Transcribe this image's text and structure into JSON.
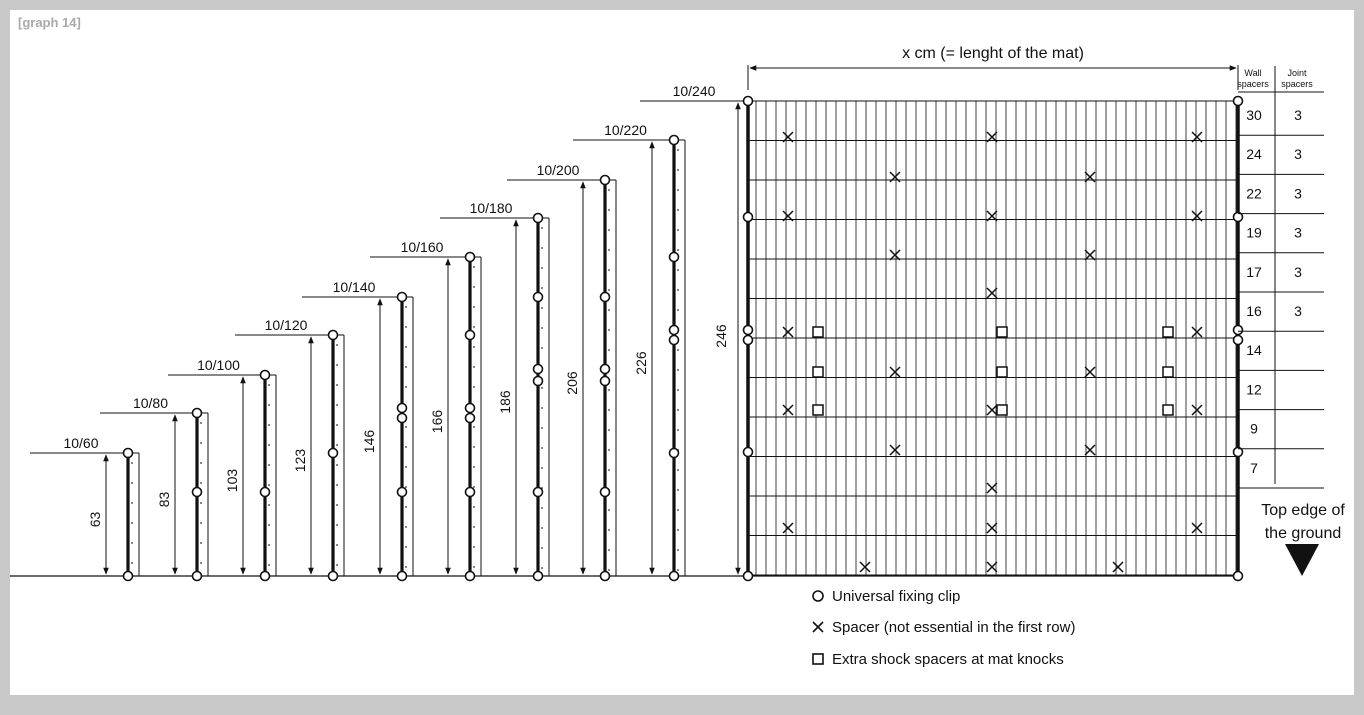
{
  "graph_tag": "[graph 14]",
  "panels": [
    {
      "label": "10/60",
      "height": "63"
    },
    {
      "label": "10/80",
      "height": "83"
    },
    {
      "label": "10/100",
      "height": "103"
    },
    {
      "label": "10/120",
      "height": "123"
    },
    {
      "label": "10/140",
      "height": "146"
    },
    {
      "label": "10/160",
      "height": "166"
    },
    {
      "label": "10/180",
      "height": "186"
    },
    {
      "label": "10/200",
      "height": "206"
    },
    {
      "label": "10/220",
      "height": "226"
    },
    {
      "label": "10/240",
      "height": "246"
    }
  ],
  "mat": {
    "length_label": "x cm (= lenght of the mat)"
  },
  "spacer_table": {
    "wall_header": [
      "Wall",
      "spacers"
    ],
    "joint_header": [
      "Joint",
      "spacers"
    ],
    "rows": [
      {
        "wall": "30",
        "joint": "3"
      },
      {
        "wall": "24",
        "joint": "3"
      },
      {
        "wall": "22",
        "joint": "3"
      },
      {
        "wall": "19",
        "joint": "3"
      },
      {
        "wall": "17",
        "joint": "3"
      },
      {
        "wall": "16",
        "joint": "3"
      },
      {
        "wall": "14",
        "joint": ""
      },
      {
        "wall": "12",
        "joint": ""
      },
      {
        "wall": "9",
        "joint": ""
      },
      {
        "wall": "7",
        "joint": ""
      }
    ]
  },
  "ground_label": [
    "Top edge of",
    "the ground"
  ],
  "legend": [
    {
      "symbol": "circle",
      "text": "Universal fixing clip"
    },
    {
      "symbol": "cross",
      "text": "Spacer (not essential in the first row)"
    },
    {
      "symbol": "square",
      "text": "Extra shock spacers at mat knocks"
    }
  ]
}
